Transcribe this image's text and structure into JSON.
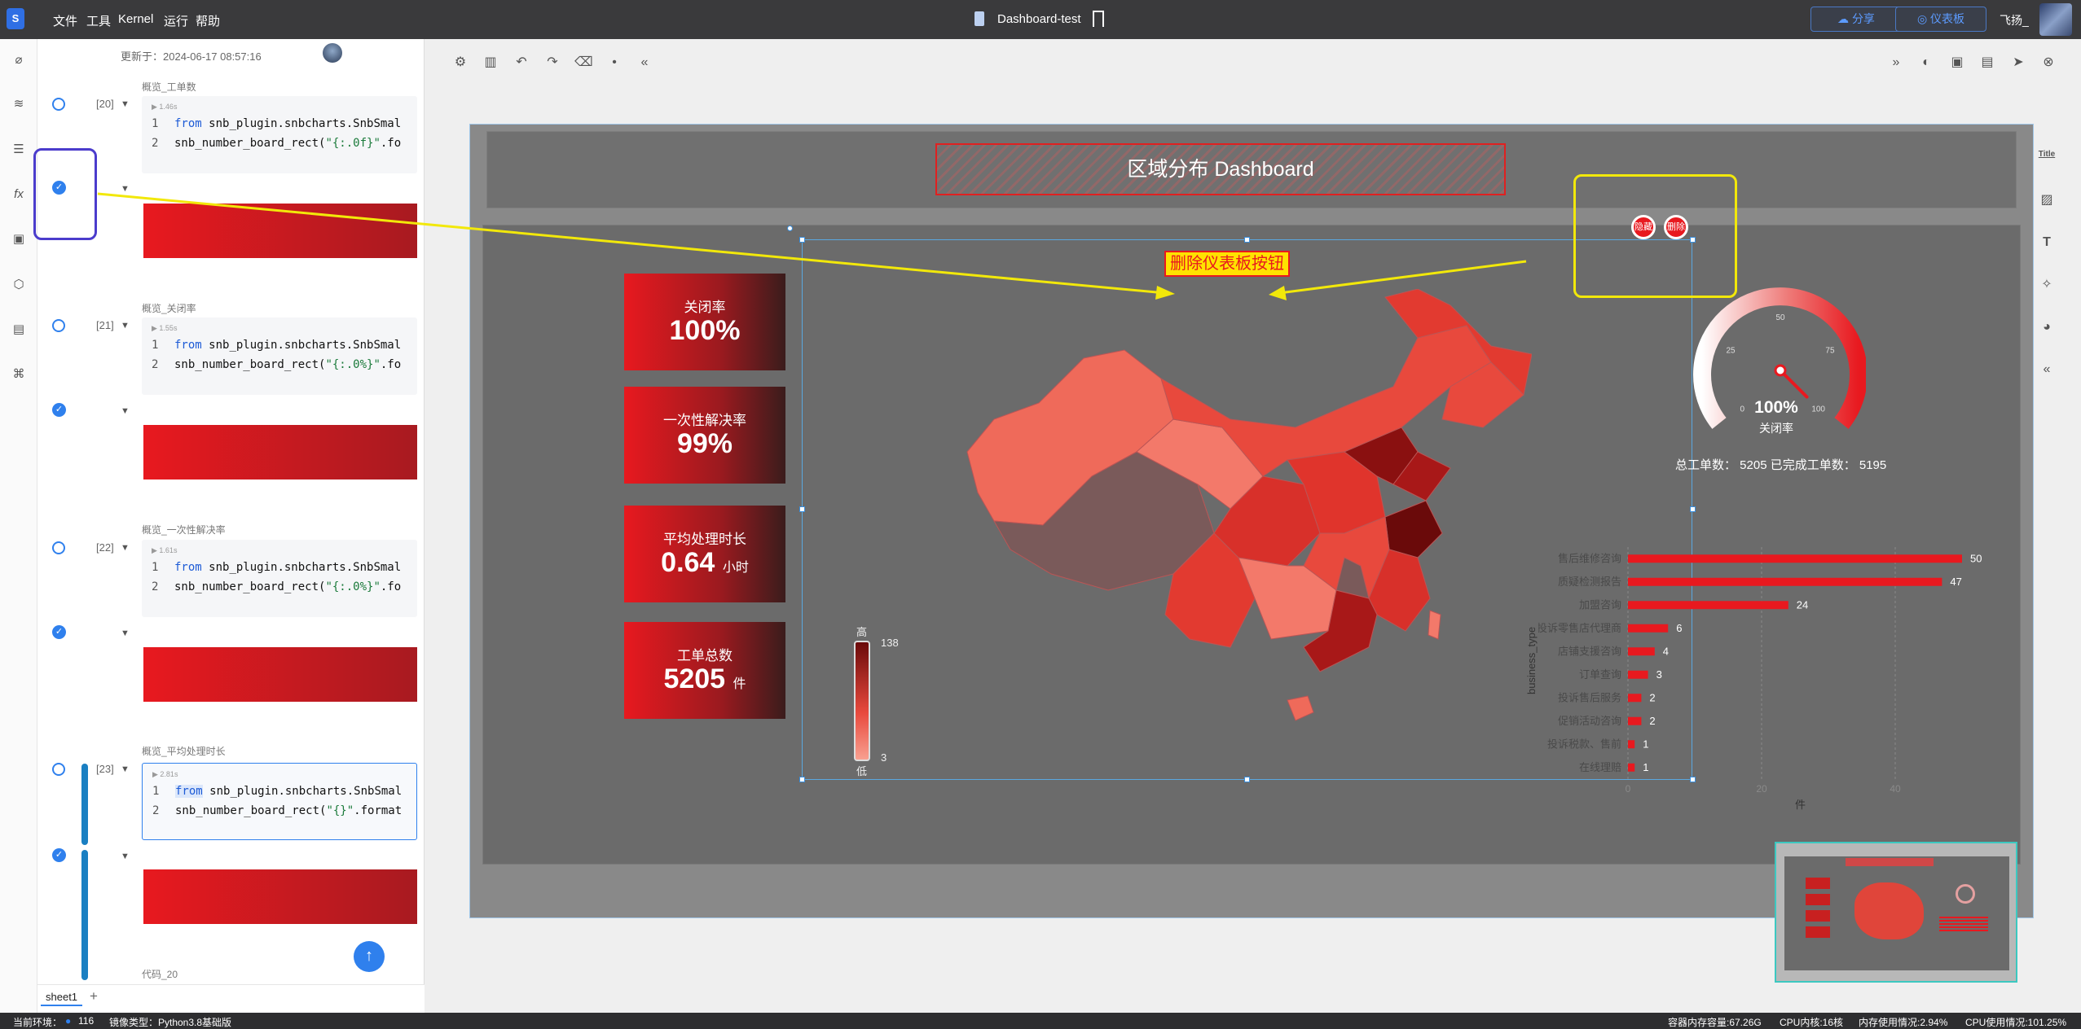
{
  "app": {
    "menu": [
      "文件",
      "工具",
      "Kernel",
      "运行",
      "帮助"
    ],
    "doc_title": "Dashboard-test",
    "share_label": "分享",
    "dashboard_label": "仪表板",
    "user_name": "飞扬_"
  },
  "notebook": {
    "updated_text": "更新于：2024-06-17 08:57:16",
    "cells": [
      {
        "name": "概览_工单数",
        "num": "[20]",
        "runtime": "1.46s",
        "line1": "snb_plugin.snbcharts.SnbSmal",
        "line2a": "snb_number_board_rect(",
        "line2b": "\"{:.0f}\"",
        "line2c": ".fo"
      },
      {
        "name": "概览_关闭率",
        "num": "[21]",
        "runtime": "1.55s",
        "line1": "snb_plugin.snbcharts.SnbSmal",
        "line2a": "snb_number_board_rect(",
        "line2b": "\"{:.0%}\"",
        "line2c": ".fo"
      },
      {
        "name": "概览_一次性解决率",
        "num": "[22]",
        "runtime": "1.61s",
        "line1": "snb_plugin.snbcharts.SnbSmal",
        "line2a": "snb_number_board_rect(",
        "line2b": "\"{:.0%}\"",
        "line2c": ".fo"
      },
      {
        "name": "概览_平均处理时长",
        "num": "[23]",
        "runtime": "2.81s",
        "line1": "snb_plugin.snbcharts.SnbSmal",
        "line2a": "snb_number_board_rect(",
        "line2b": "\"{}\"",
        "line2c": ".format"
      }
    ],
    "keyword_from": "from",
    "next_cell_name": "代码_20",
    "sheet_tab": "sheet1"
  },
  "dashboard": {
    "title": "区域分布 Dashboard",
    "annotation": "删除仪表板按钮",
    "hide_btn": "隐藏",
    "delete_btn": "删除",
    "kpis": [
      {
        "label": "关闭率",
        "value": "100%",
        "unit": ""
      },
      {
        "label": "一次性解决率",
        "value": "99%",
        "unit": ""
      },
      {
        "label": "平均处理时长",
        "value": "0.64",
        "unit": "小时"
      },
      {
        "label": "工单总数",
        "value": "5205",
        "unit": "件"
      }
    ],
    "map_legend": {
      "high": "高",
      "low": "低",
      "max": "138",
      "min": "3"
    },
    "gauge": {
      "value": "100%",
      "label": "关闭率",
      "percent": 100,
      "ticks": [
        "0",
        "25",
        "50",
        "75",
        "100"
      ]
    },
    "totals_text": "总工单数：  5205 已完成工单数：  5195",
    "bar_axis_title": "business_type",
    "bar_unit": "件"
  },
  "chart_data": {
    "type": "bar",
    "orientation": "horizontal",
    "categories": [
      "售后维修咨询",
      "质疑检测报告",
      "加盟咨询",
      "投诉零售店代理商",
      "店铺支援咨询",
      "订单查询",
      "投诉售后服务",
      "促销活动咨询",
      "投诉税款、售前",
      "在线理赔"
    ],
    "values": [
      50,
      47,
      24,
      6,
      4,
      3,
      2,
      2,
      1,
      1
    ],
    "xlabel": "件",
    "ylabel": "business_type",
    "xticks": [
      "0",
      "20",
      "40"
    ],
    "xlim": [
      0,
      50
    ],
    "color": "#e8191f"
  },
  "status": {
    "env_label": "当前环境：",
    "env_value": "116",
    "image_type": "镜像类型：Python3.8基础版",
    "container_mem": "容器内存容量:67.26G",
    "cpu_cores": "CPU内核:16核",
    "mem_usage": "内存使用情况:2.94%",
    "cpu_usage": "CPU使用情况:101.25%"
  },
  "colors": {
    "accent": "#2f80ed",
    "kpi_red": "#e8191f",
    "annotation_yellow": "#f2e80a",
    "annotation_purple": "#4b3ccc"
  }
}
